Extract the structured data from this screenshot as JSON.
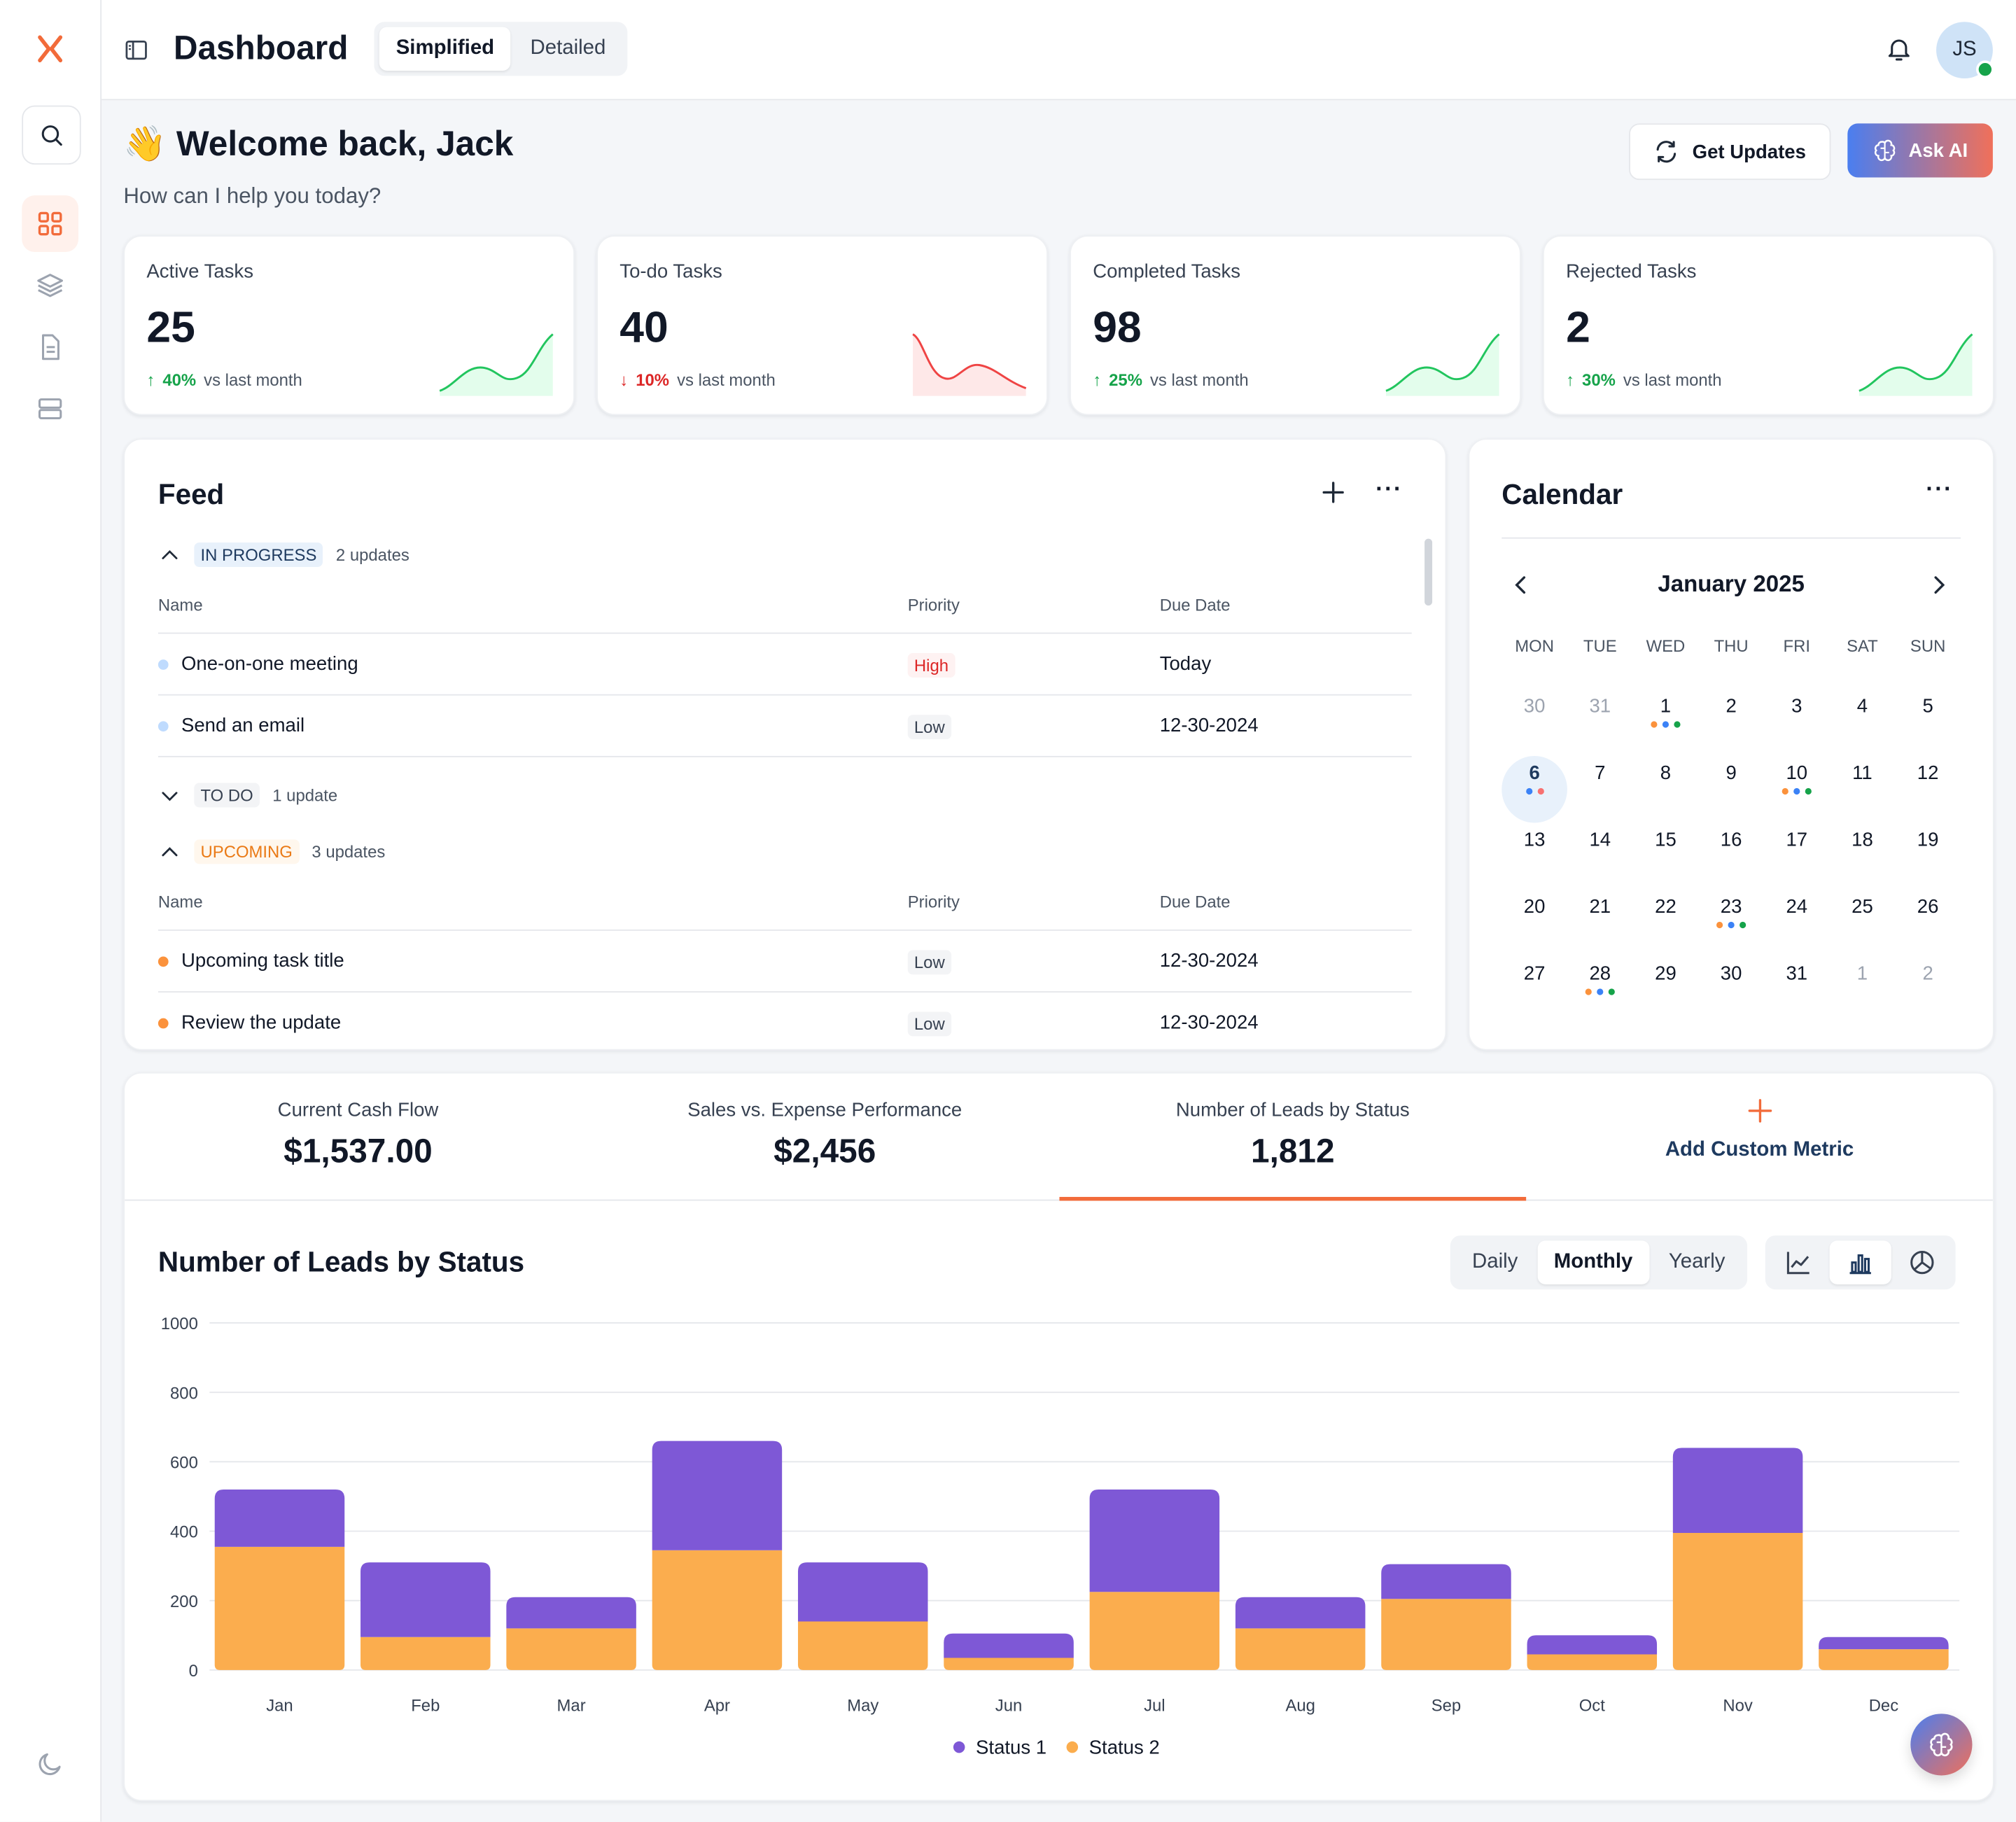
{
  "header": {
    "title": "Dashboard",
    "tabs": [
      "Simplified",
      "Detailed"
    ],
    "active_tab": "Simplified",
    "avatar_initials": "JS"
  },
  "welcome": {
    "emoji": "👋",
    "title": "Welcome back, Jack",
    "subtitle": "How can I help you today?",
    "get_updates": "Get Updates",
    "ask_ai": "Ask AI"
  },
  "stats": [
    {
      "title": "Active Tasks",
      "value": "25",
      "delta": "40%",
      "direction": "up",
      "suffix": "vs last month"
    },
    {
      "title": "To-do Tasks",
      "value": "40",
      "delta": "10%",
      "direction": "down",
      "suffix": "vs last month"
    },
    {
      "title": "Completed Tasks",
      "value": "98",
      "delta": "25%",
      "direction": "up",
      "suffix": "vs last month"
    },
    {
      "title": "Rejected Tasks",
      "value": "2",
      "delta": "30%",
      "direction": "up",
      "suffix": "vs last month"
    }
  ],
  "feed": {
    "title": "Feed",
    "groups": [
      {
        "label": "IN PROGRESS",
        "count": "2 updates"
      },
      {
        "label": "TO DO",
        "count": "1 update"
      },
      {
        "label": "UPCOMING",
        "count": "3 updates"
      }
    ],
    "columns": [
      "Name",
      "Priority",
      "Due Date"
    ],
    "in_progress_rows": [
      {
        "name": "One-on-one meeting",
        "priority": "High",
        "due": "Today"
      },
      {
        "name": "Send an email",
        "priority": "Low",
        "due": "12-30-2024"
      }
    ],
    "upcoming_rows": [
      {
        "name": "Upcoming task title",
        "priority": "Low",
        "due": "12-30-2024"
      },
      {
        "name": "Review the update",
        "priority": "Low",
        "due": "12-30-2024"
      }
    ]
  },
  "calendar": {
    "title": "Calendar",
    "month": "January 2025",
    "weekdays": [
      "MON",
      "TUE",
      "WED",
      "THU",
      "FRI",
      "SAT",
      "SUN"
    ],
    "weeks": [
      [
        "30",
        "31",
        "1",
        "2",
        "3",
        "4",
        "5"
      ],
      [
        "6",
        "7",
        "8",
        "9",
        "10",
        "11",
        "12"
      ],
      [
        "13",
        "14",
        "15",
        "16",
        "17",
        "18",
        "19"
      ],
      [
        "20",
        "21",
        "22",
        "23",
        "24",
        "25",
        "26"
      ],
      [
        "27",
        "28",
        "29",
        "30",
        "31",
        "1",
        "2"
      ]
    ]
  },
  "metrics": {
    "items": [
      {
        "title": "Current Cash Flow",
        "value": "$1,537.00"
      },
      {
        "title": "Sales vs. Expense Performance",
        "value": "$2,456"
      },
      {
        "title": "Number of Leads by Status",
        "value": "1,812"
      }
    ],
    "add_label": "Add Custom Metric"
  },
  "chart_panel": {
    "title": "Number of Leads by Status",
    "periods": [
      "Daily",
      "Monthly",
      "Yearly"
    ],
    "active_period": "Monthly"
  },
  "chart_data": {
    "type": "bar",
    "stacked": true,
    "title": "Number of Leads by Status",
    "categories": [
      "Jan",
      "Feb",
      "Mar",
      "Apr",
      "May",
      "Jun",
      "Jul",
      "Aug",
      "Sep",
      "Oct",
      "Nov",
      "Dec"
    ],
    "series": [
      {
        "name": "Status 2",
        "color": "#fbad4e",
        "values": [
          355,
          95,
          120,
          345,
          140,
          35,
          225,
          120,
          205,
          45,
          395,
          60
        ]
      },
      {
        "name": "Status 1",
        "color": "#7e58d6",
        "values": [
          165,
          215,
          90,
          315,
          170,
          70,
          295,
          90,
          100,
          55,
          245,
          35
        ]
      }
    ],
    "y_ticks": [
      "0",
      "200",
      "400",
      "600",
      "800",
      "1000"
    ],
    "ylim": [
      0,
      1000
    ],
    "legend": [
      "Status 1",
      "Status 2"
    ],
    "legend_position": "bottom-center",
    "grid": true
  }
}
